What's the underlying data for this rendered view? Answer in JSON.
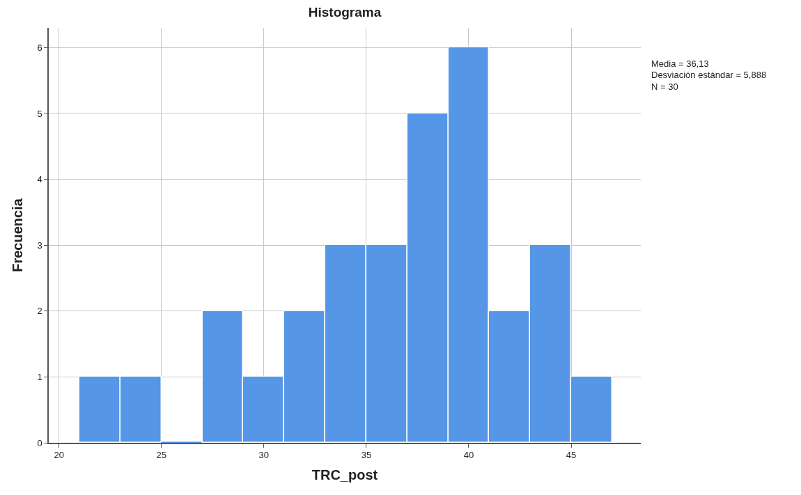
{
  "chart_data": {
    "type": "histogram",
    "title": "Histograma",
    "xlabel": "TRC_post",
    "ylabel": "Frecuencia",
    "bins": [
      21,
      23,
      25,
      27,
      29,
      31,
      33,
      35,
      37,
      39,
      41,
      43,
      45,
      47
    ],
    "values": [
      1,
      1,
      0,
      2,
      1,
      2,
      3,
      3,
      5,
      6,
      2,
      3,
      1
    ],
    "color": "#5596e6",
    "xlim": [
      19.5,
      48.4
    ],
    "xticks": [
      20,
      25,
      30,
      35,
      40,
      45
    ],
    "ylim": [
      0,
      6.3
    ],
    "yticks": [
      0,
      1,
      2,
      3,
      4,
      5,
      6
    ],
    "grid": true,
    "annotations": [
      "Media = 36,13",
      "Desviación estándar = 5,888",
      "N = 30"
    ]
  }
}
